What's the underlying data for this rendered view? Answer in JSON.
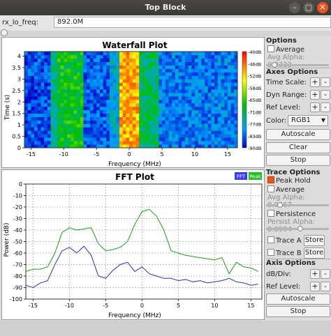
{
  "window": {
    "title": "Top Block",
    "close_glyph": "✕",
    "maximize_glyph": "▢",
    "minimize_glyph": "–"
  },
  "freq": {
    "label": "rx_lo_freq:",
    "value": "892.0M"
  },
  "waterfall": {
    "title": "Waterfall Plot",
    "xlabel": "Frequency (MHz)",
    "ylabel": "Time (s)",
    "xticks": [
      "-15",
      "-10",
      "-5",
      "0",
      "5",
      "10",
      "15"
    ],
    "yticks": [
      "0",
      "0.5",
      "1",
      "1.5",
      "2",
      "2.5",
      "3",
      "3.5",
      "4"
    ],
    "colorbar_labels": [
      "-40dB",
      "-46dB",
      "-52dB",
      "-58dB",
      "-65dB",
      "-71dB",
      "-77dB",
      "-83dB",
      "-90dB"
    ]
  },
  "fft": {
    "title": "FFT Plot",
    "xlabel": "Frequency (MHz)",
    "ylabel": "Power (dB)",
    "xticks": [
      "-15",
      "-10",
      "-5",
      "0",
      "5",
      "10",
      "15"
    ],
    "yticks": [
      "0",
      "-10",
      "-20",
      "-30",
      "-40",
      "-50",
      "-60",
      "-70",
      "-80",
      "-90",
      "-100"
    ],
    "legend": {
      "fft": "FFT",
      "peak": "Peak"
    }
  },
  "options": {
    "heading": "Options",
    "average_label": "Average",
    "avg_alpha": "Avg Alpha: 0.0333",
    "avg_alpha_level": 0.1
  },
  "axes_options": {
    "heading": "Axes Options",
    "time_scale": "Time Scale:",
    "dyn_range": "Dyn Range:",
    "ref_level": "Ref Level:",
    "plus": "+",
    "minus": "-",
    "color_label": "Color:",
    "color_value": "RGB1",
    "autoscale": "Autoscale",
    "clear": "Clear",
    "stop": "Stop"
  },
  "trace_options": {
    "heading": "Trace Options",
    "peak_hold": "Peak Hold",
    "average": "Average",
    "avg_alpha": "Avg Alpha: 0.0667",
    "avg_alpha_level": 0.2,
    "persistence": "Persistence",
    "persist_alpha": "Persist Alpha: 0.0994",
    "persist_alpha_level": 0.55,
    "trace_a": "Trace A",
    "trace_b": "Trace B",
    "store": "Store"
  },
  "axis_options": {
    "heading": "Axis Options",
    "db_div": "dB/Div:",
    "ref_level": "Ref Level:",
    "plus": "+",
    "minus": "-",
    "autoscale": "Autoscale",
    "stop": "Stop"
  },
  "colors": {
    "fft": "#2e2ec4",
    "peak": "#1aa01a",
    "accent": "#e9541f"
  },
  "chart_data": [
    {
      "type": "heatmap",
      "title": "Waterfall Plot",
      "xlabel": "Frequency (MHz)",
      "ylabel": "Time (s)",
      "xlim": [
        -16,
        16.5
      ],
      "ylim": [
        0,
        4.2
      ],
      "colorbar": {
        "min": -90,
        "max": -40,
        "unit": "dB",
        "colormap": "RGB1"
      },
      "bands": [
        {
          "x": [
            -16,
            -12
          ],
          "level": -85
        },
        {
          "x": [
            -12,
            -11
          ],
          "level": -74
        },
        {
          "x": [
            -11,
            -7
          ],
          "level": -68
        },
        {
          "x": [
            -7,
            -3
          ],
          "level": -84
        },
        {
          "x": [
            -3,
            -1.5
          ],
          "level": -78
        },
        {
          "x": [
            -1.5,
            1.5
          ],
          "level": -50
        },
        {
          "x": [
            1.5,
            4.5
          ],
          "level": -72
        },
        {
          "x": [
            4.5,
            16.5
          ],
          "level": -82
        }
      ]
    },
    {
      "type": "line",
      "title": "FFT Plot",
      "xlabel": "Frequency (MHz)",
      "ylabel": "Power (dB)",
      "xlim": [
        -16,
        16.5
      ],
      "ylim": [
        -100,
        0
      ],
      "grid": true,
      "legend": "top-right",
      "series": [
        {
          "name": "FFT",
          "x": [
            -16,
            -15,
            -14,
            -13,
            -12,
            -11,
            -10,
            -9,
            -8,
            -7,
            -6,
            -5,
            -4,
            -3,
            -2,
            -1,
            0,
            1,
            2,
            3,
            4,
            5,
            6,
            7,
            8,
            9,
            10,
            11,
            12,
            13,
            14,
            15,
            16
          ],
          "y": [
            -88,
            -90,
            -86,
            -84,
            -70,
            -58,
            -55,
            -60,
            -54,
            -62,
            -80,
            -82,
            -75,
            -70,
            -68,
            -76,
            -72,
            -78,
            -80,
            -82,
            -82,
            -84,
            -83,
            -85,
            -84,
            -86,
            -85,
            -84,
            -82,
            -85,
            -86,
            -88,
            -87
          ]
        },
        {
          "name": "Peak",
          "x": [
            -16,
            -15,
            -14,
            -13,
            -12,
            -11,
            -10,
            -9,
            -8,
            -7,
            -6,
            -5,
            -4,
            -3,
            -2,
            -1,
            0,
            1,
            2,
            3,
            4,
            5,
            6,
            7,
            8,
            9,
            10,
            11,
            12,
            13,
            14,
            15,
            16
          ],
          "y": [
            -76,
            -74,
            -74,
            -72,
            -60,
            -42,
            -38,
            -40,
            -39,
            -38,
            -52,
            -58,
            -57,
            -55,
            -50,
            -35,
            -24,
            -22,
            -28,
            -40,
            -58,
            -60,
            -62,
            -63,
            -64,
            -65,
            -66,
            -64,
            -78,
            -68,
            -72,
            -73,
            -76
          ]
        }
      ]
    }
  ]
}
